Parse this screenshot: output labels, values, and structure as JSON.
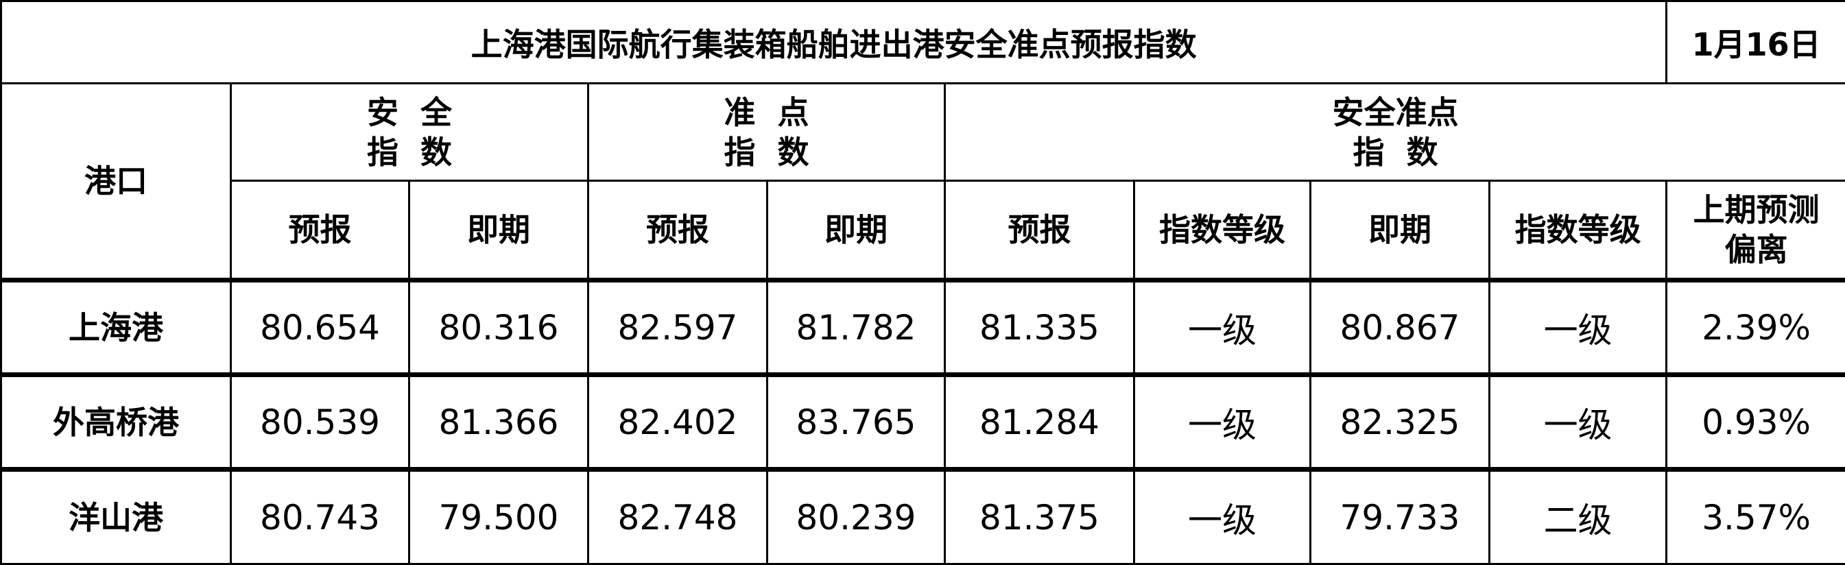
{
  "title": "上海港国际航行集装箱船舶进出港安全准点预报指数",
  "date": "1月16日",
  "header": {
    "port": "港口",
    "groups": [
      {
        "lines": [
          "安  全",
          "指  数"
        ]
      },
      {
        "lines": [
          "准  点",
          "指  数"
        ]
      },
      {
        "lines": [
          "安全准点",
          "指  数"
        ]
      }
    ],
    "sub": [
      "预报",
      "即期",
      "预报",
      "即期",
      "预报",
      "指数等级",
      "即期",
      "指数等级"
    ],
    "deviation": [
      "上期预测",
      "偏离"
    ]
  },
  "rows": [
    {
      "port": "上海港",
      "cells": [
        "80.654",
        "80.316",
        "82.597",
        "81.782",
        "81.335",
        "一级",
        "80.867",
        "一级",
        "2.39%"
      ]
    },
    {
      "port": "外高桥港",
      "cells": [
        "80.539",
        "81.366",
        "82.402",
        "83.765",
        "81.284",
        "一级",
        "82.325",
        "一级",
        "0.93%"
      ]
    },
    {
      "port": "洋山港",
      "cells": [
        "80.743",
        "79.500",
        "82.748",
        "80.239",
        "81.375",
        "一级",
        "79.733",
        "二级",
        "3.57%"
      ]
    }
  ]
}
